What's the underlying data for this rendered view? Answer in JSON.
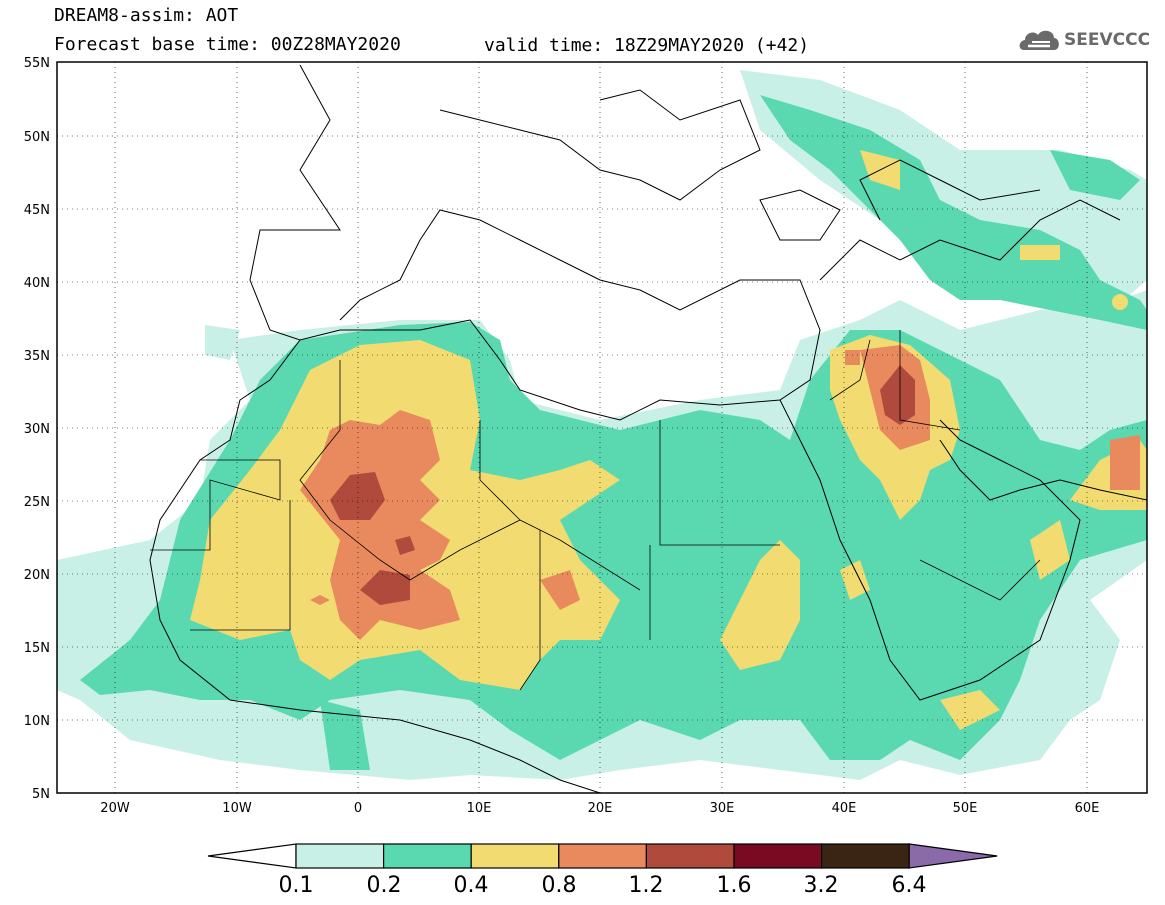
{
  "header": {
    "title_line1": "DREAM8-assim: AOT",
    "title_line2": "Forecast base time: 00Z28MAY2020",
    "valid_time": "valid time: 18Z29MAY2020 (+42)",
    "logo_text": "SEEVCCC"
  },
  "map": {
    "lat_labels": [
      "55N",
      "50N",
      "45N",
      "40N",
      "35N",
      "30N",
      "25N",
      "20N",
      "15N",
      "10N",
      "5N"
    ],
    "lon_labels": [
      "20W",
      "10W",
      "0",
      "10E",
      "20E",
      "30E",
      "40E",
      "50E",
      "60E"
    ],
    "lon_range": [
      -25,
      65
    ],
    "lat_range": [
      5,
      55
    ]
  },
  "colorbar": {
    "labels": [
      "0.1",
      "0.2",
      "0.4",
      "0.8",
      "1.2",
      "1.6",
      "3.2",
      "6.4"
    ],
    "colors": [
      "#c8f0e6",
      "#5ad8b0",
      "#f2dc72",
      "#e88a5e",
      "#b04a3c",
      "#7a0a22",
      "#3a2414",
      "#8a6aa8"
    ]
  }
}
